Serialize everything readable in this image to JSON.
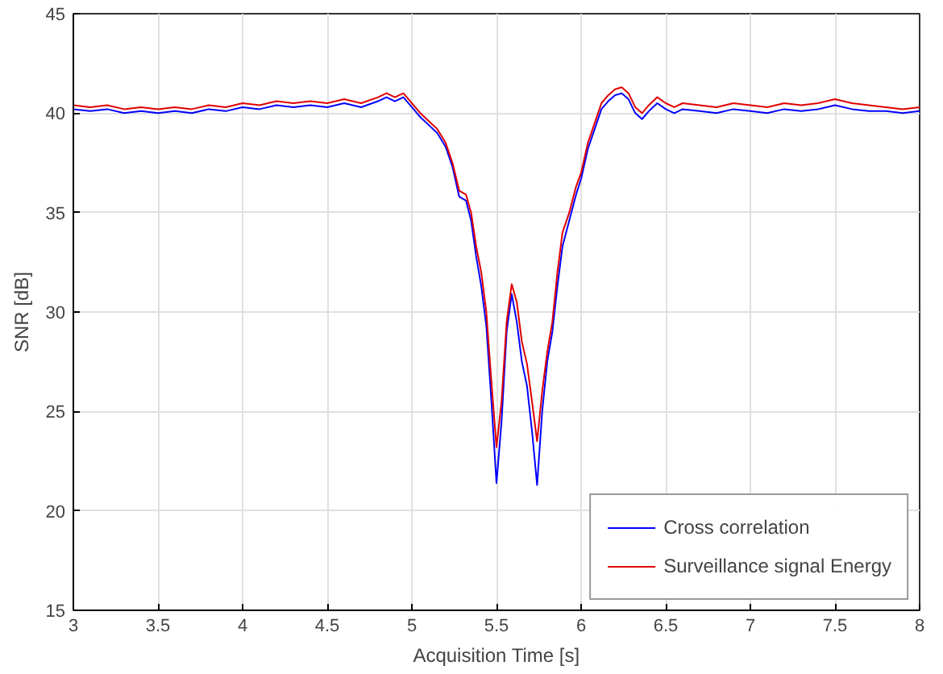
{
  "chart_data": {
    "type": "line",
    "xlabel": "Acquisition Time [s]",
    "ylabel": "SNR [dB]",
    "x": [
      3.0,
      3.1,
      3.2,
      3.3,
      3.4,
      3.5,
      3.6,
      3.7,
      3.8,
      3.9,
      4.0,
      4.1,
      4.2,
      4.3,
      4.4,
      4.5,
      4.6,
      4.7,
      4.8,
      4.85,
      4.9,
      4.95,
      5.0,
      5.05,
      5.1,
      5.15,
      5.2,
      5.24,
      5.28,
      5.32,
      5.35,
      5.38,
      5.41,
      5.44,
      5.47,
      5.5,
      5.53,
      5.56,
      5.59,
      5.62,
      5.65,
      5.68,
      5.71,
      5.74,
      5.77,
      5.8,
      5.83,
      5.86,
      5.89,
      5.93,
      5.97,
      6.0,
      6.04,
      6.08,
      6.12,
      6.16,
      6.2,
      6.24,
      6.28,
      6.32,
      6.36,
      6.4,
      6.45,
      6.5,
      6.55,
      6.6,
      6.7,
      6.8,
      6.9,
      7.0,
      7.1,
      7.2,
      7.3,
      7.4,
      7.5,
      7.6,
      7.7,
      7.8,
      7.9,
      8.0
    ],
    "series": [
      {
        "name": "Cross correlation",
        "color": "#0000ff",
        "values": [
          40.2,
          40.1,
          40.2,
          40.0,
          40.1,
          40.0,
          40.1,
          40.0,
          40.2,
          40.1,
          40.3,
          40.2,
          40.4,
          40.3,
          40.4,
          40.3,
          40.5,
          40.3,
          40.6,
          40.8,
          40.6,
          40.8,
          40.3,
          39.8,
          39.4,
          39.0,
          38.3,
          37.3,
          35.8,
          35.6,
          34.6,
          32.8,
          31.3,
          29.3,
          25.5,
          21.4,
          24.5,
          29.0,
          30.9,
          29.5,
          27.5,
          26.3,
          24.0,
          21.3,
          25.0,
          27.5,
          29.0,
          31.3,
          33.3,
          34.6,
          35.9,
          36.7,
          38.2,
          39.2,
          40.2,
          40.6,
          40.9,
          41.0,
          40.7,
          40.0,
          39.7,
          40.1,
          40.5,
          40.2,
          40.0,
          40.2,
          40.1,
          40.0,
          40.2,
          40.1,
          40.0,
          40.2,
          40.1,
          40.2,
          40.4,
          40.2,
          40.1,
          40.1,
          40.0,
          40.1
        ]
      },
      {
        "name": "Surveillance signal Energy",
        "color": "#e00000",
        "values": [
          40.4,
          40.3,
          40.4,
          40.2,
          40.3,
          40.2,
          40.3,
          40.2,
          40.4,
          40.3,
          40.5,
          40.4,
          40.6,
          40.5,
          40.6,
          40.5,
          40.7,
          40.5,
          40.8,
          41.0,
          40.8,
          41.0,
          40.5,
          40.0,
          39.6,
          39.2,
          38.5,
          37.5,
          36.1,
          35.9,
          35.0,
          33.3,
          32.0,
          30.0,
          26.5,
          23.2,
          25.5,
          29.5,
          31.4,
          30.5,
          28.5,
          27.4,
          25.5,
          23.5,
          26.0,
          28.0,
          29.5,
          32.0,
          34.0,
          35.0,
          36.3,
          37.0,
          38.5,
          39.5,
          40.5,
          40.9,
          41.2,
          41.3,
          41.0,
          40.3,
          40.0,
          40.4,
          40.8,
          40.5,
          40.3,
          40.5,
          40.4,
          40.3,
          40.5,
          40.4,
          40.3,
          40.5,
          40.4,
          40.5,
          40.7,
          40.5,
          40.4,
          40.3,
          40.2,
          40.3
        ]
      }
    ],
    "xlim": [
      3,
      8
    ],
    "ylim": [
      15,
      45
    ],
    "xticks": [
      3,
      3.5,
      4,
      4.5,
      5,
      5.5,
      6,
      6.5,
      7,
      7.5,
      8
    ],
    "yticks": [
      15,
      20,
      25,
      30,
      35,
      40,
      45
    ],
    "grid": true,
    "legend": "bottom right",
    "marker": "none",
    "line_style": "solid"
  }
}
